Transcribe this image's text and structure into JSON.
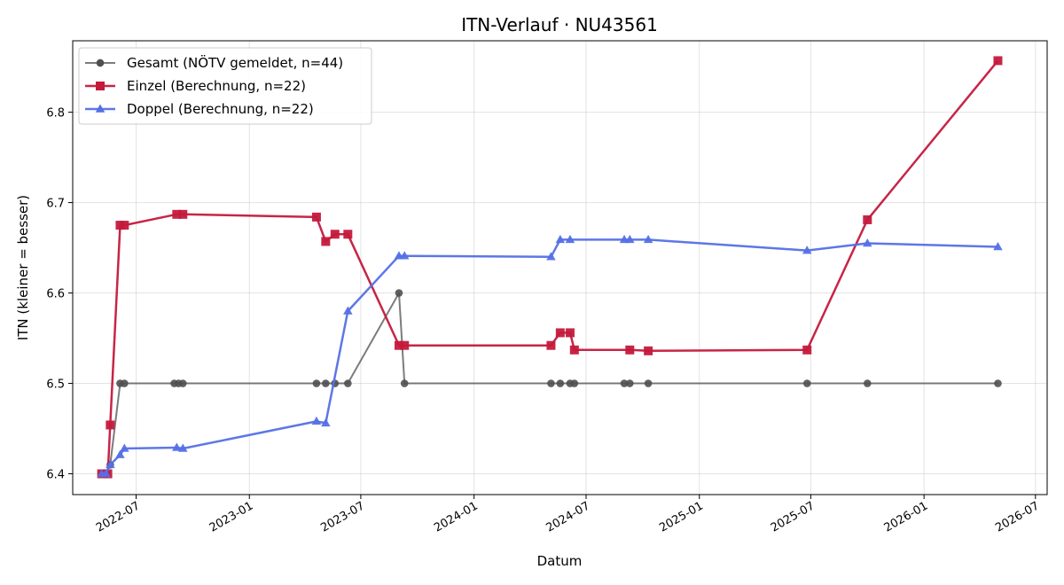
{
  "chart_data": {
    "type": "line",
    "title": "ITN-Verlauf · NU43561",
    "xlabel": "Datum",
    "ylabel": "ITN  (kleiner = besser)",
    "xlim": [
      "2022-03-20",
      "2026-07-20"
    ],
    "ylim": [
      6.377,
      6.879
    ],
    "grid": true,
    "legend_position": "top-left",
    "x_ticks": [
      "2022-07",
      "2023-01",
      "2023-07",
      "2024-01",
      "2024-07",
      "2025-01",
      "2025-07",
      "2026-01",
      "2026-07"
    ],
    "y_ticks": [
      "6.4",
      "6.5",
      "6.6",
      "6.7",
      "6.8"
    ],
    "series": [
      {
        "name": "Gesamt (NÖTV gemeldet, n=44)",
        "color": "#505050",
        "marker": "circle",
        "points": [
          [
            "2022-05-06",
            6.4
          ],
          [
            "2022-05-13",
            6.4
          ],
          [
            "2022-05-20",
            6.41
          ],
          [
            "2022-06-05",
            6.5
          ],
          [
            "2022-06-12",
            6.5
          ],
          [
            "2022-09-01",
            6.5
          ],
          [
            "2022-09-08",
            6.5
          ],
          [
            "2022-09-15",
            6.5
          ],
          [
            "2023-04-20",
            6.5
          ],
          [
            "2023-05-05",
            6.5
          ],
          [
            "2023-05-20",
            6.5
          ],
          [
            "2023-06-10",
            6.5
          ],
          [
            "2023-09-01",
            6.6
          ],
          [
            "2023-09-10",
            6.5
          ],
          [
            "2024-05-05",
            6.5
          ],
          [
            "2024-05-20",
            6.5
          ],
          [
            "2024-06-05",
            6.5
          ],
          [
            "2024-06-12",
            6.5
          ],
          [
            "2024-09-01",
            6.5
          ],
          [
            "2024-09-10",
            6.5
          ],
          [
            "2024-10-10",
            6.5
          ],
          [
            "2025-06-25",
            6.5
          ],
          [
            "2025-10-01",
            6.5
          ],
          [
            "2026-05-01",
            6.5
          ]
        ]
      },
      {
        "name": "Einzel (Berechnung, n=22)",
        "color": "#c4193c",
        "marker": "square",
        "points": [
          [
            "2022-05-06",
            6.4
          ],
          [
            "2022-05-16",
            6.4
          ],
          [
            "2022-05-20",
            6.454
          ],
          [
            "2022-06-05",
            6.675
          ],
          [
            "2022-06-12",
            6.675
          ],
          [
            "2022-09-05",
            6.687
          ],
          [
            "2022-09-15",
            6.687
          ],
          [
            "2023-04-20",
            6.684
          ],
          [
            "2023-05-05",
            6.657
          ],
          [
            "2023-05-20",
            6.665
          ],
          [
            "2023-06-10",
            6.665
          ],
          [
            "2023-09-01",
            6.542
          ],
          [
            "2023-09-10",
            6.542
          ],
          [
            "2024-05-05",
            6.542
          ],
          [
            "2024-05-20",
            6.556
          ],
          [
            "2024-06-05",
            6.556
          ],
          [
            "2024-06-12",
            6.537
          ],
          [
            "2024-09-10",
            6.537
          ],
          [
            "2024-10-10",
            6.536
          ],
          [
            "2025-06-25",
            6.537
          ],
          [
            "2025-10-01",
            6.681
          ],
          [
            "2026-05-01",
            6.857
          ]
        ]
      },
      {
        "name": "Doppel (Berechnung, n=22)",
        "color": "#5470e6",
        "marker": "triangle",
        "points": [
          [
            "2022-05-06",
            6.4
          ],
          [
            "2022-05-13",
            6.4
          ],
          [
            "2022-05-20",
            6.41
          ],
          [
            "2022-06-05",
            6.421
          ],
          [
            "2022-06-12",
            6.428
          ],
          [
            "2022-09-05",
            6.429
          ],
          [
            "2022-09-15",
            6.428
          ],
          [
            "2023-04-20",
            6.458
          ],
          [
            "2023-05-05",
            6.456
          ],
          [
            "2023-06-10",
            6.58
          ],
          [
            "2023-09-01",
            6.641
          ],
          [
            "2023-09-10",
            6.641
          ],
          [
            "2024-05-05",
            6.64
          ],
          [
            "2024-05-20",
            6.659
          ],
          [
            "2024-06-05",
            6.659
          ],
          [
            "2024-09-01",
            6.659
          ],
          [
            "2024-09-10",
            6.659
          ],
          [
            "2024-10-10",
            6.659
          ],
          [
            "2025-06-25",
            6.647
          ],
          [
            "2025-10-01",
            6.655
          ],
          [
            "2026-05-01",
            6.651
          ]
        ]
      }
    ]
  }
}
